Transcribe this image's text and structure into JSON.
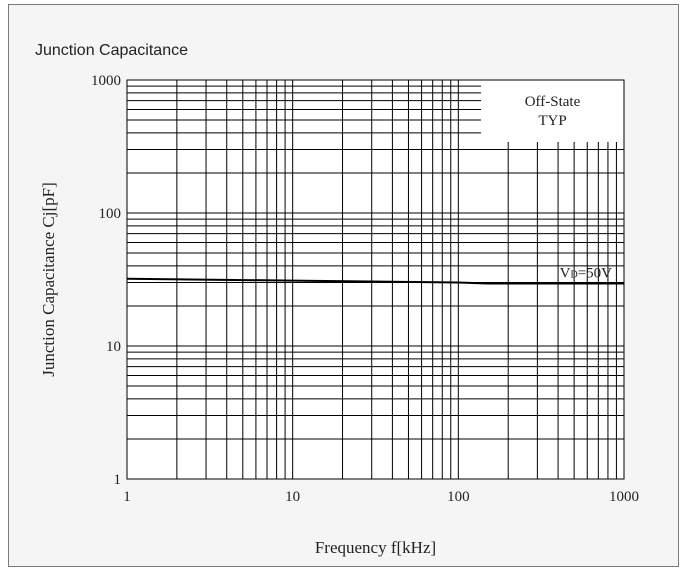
{
  "chart_data": {
    "type": "line",
    "title": "Junction Capacitance",
    "xlabel": "Frequency f[kHz]",
    "ylabel": "Junction Capacitance Cj[pF]",
    "x_scale": "log",
    "y_scale": "log",
    "xlim": [
      1,
      1000
    ],
    "ylim": [
      1,
      1000
    ],
    "x_ticks": [
      1,
      10,
      100,
      1000
    ],
    "x_tick_labels": [
      "1",
      "10",
      "100",
      "1000"
    ],
    "y_ticks": [
      1,
      10,
      100,
      1000
    ],
    "y_tick_labels": [
      "1",
      "10",
      "100",
      "1000"
    ],
    "grid": true,
    "annotations": {
      "condition_line1": "Off-State",
      "condition_line2": "TYP"
    },
    "series": [
      {
        "name_main": "V",
        "name_sub": "D",
        "name_rest": "=50V",
        "color": "#000000",
        "x": [
          1,
          10,
          100,
          150,
          1000
        ],
        "y": [
          32,
          31,
          30,
          29.5,
          29.5
        ]
      }
    ]
  }
}
